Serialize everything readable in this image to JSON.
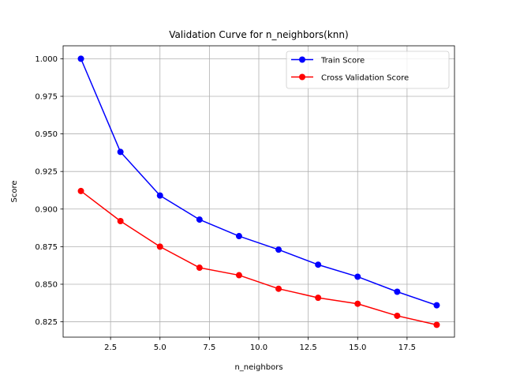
{
  "chart_data": {
    "type": "line",
    "title": "Validation Curve for n_neighbors(knn)",
    "xlabel": "n_neighbors",
    "ylabel": "Score",
    "x": [
      1,
      3,
      5,
      7,
      9,
      11,
      13,
      15,
      17,
      19
    ],
    "xlim": [
      0.1,
      19.9
    ],
    "ylim": [
      0.8148,
      1.0086
    ],
    "xticks": [
      2.5,
      5.0,
      7.5,
      10.0,
      12.5,
      15.0,
      17.5
    ],
    "xtick_labels": [
      "2.5",
      "5.0",
      "7.5",
      "10.0",
      "12.5",
      "15.0",
      "17.5"
    ],
    "yticks": [
      0.825,
      0.85,
      0.875,
      0.9,
      0.925,
      0.95,
      0.975,
      1.0
    ],
    "ytick_labels": [
      "0.825",
      "0.850",
      "0.875",
      "0.900",
      "0.925",
      "0.950",
      "0.975",
      "1.000"
    ],
    "grid": true,
    "legend_position": "top-right",
    "series": [
      {
        "name": "Train Score",
        "color": "#0000ff",
        "marker": "circle",
        "values": [
          1.0,
          0.938,
          0.909,
          0.893,
          0.882,
          0.873,
          0.863,
          0.855,
          0.845,
          0.836
        ]
      },
      {
        "name": "Cross Validation Score",
        "color": "#ff0000",
        "marker": "circle",
        "values": [
          0.912,
          0.892,
          0.875,
          0.861,
          0.856,
          0.847,
          0.841,
          0.837,
          0.829,
          0.823
        ]
      }
    ]
  }
}
